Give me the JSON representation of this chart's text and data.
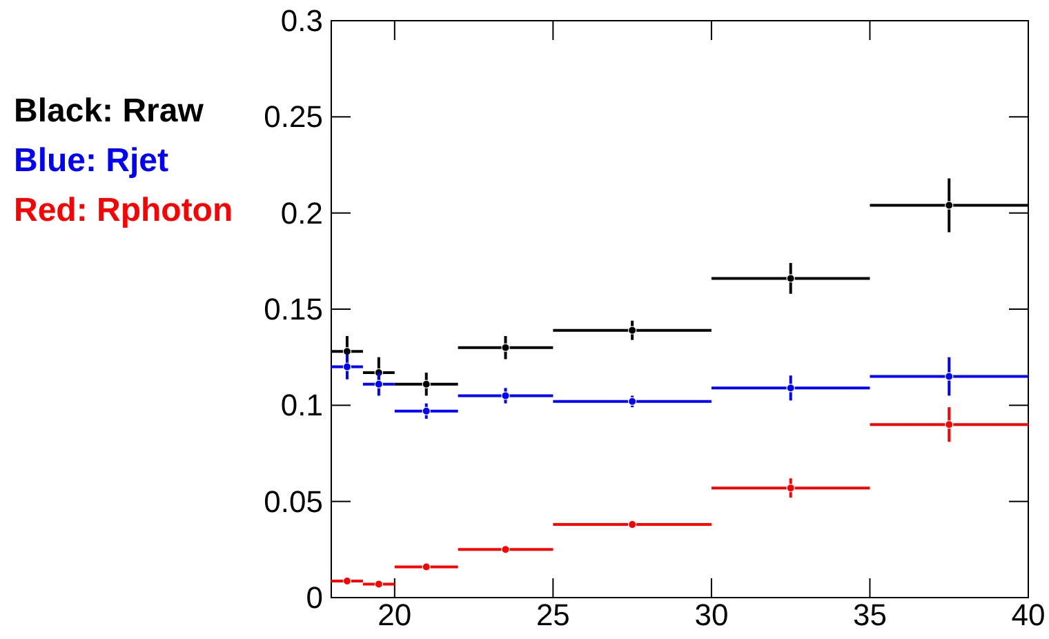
{
  "chart_data": {
    "type": "scatter",
    "xlim": [
      18,
      40
    ],
    "xticks": [
      20,
      25,
      30,
      35,
      40
    ],
    "ylim": [
      0,
      0.3
    ],
    "yticks": [
      0,
      0.05,
      {
        "value": 0.1,
        "label": "0.1"
      },
      0.15,
      {
        "value": 0.2,
        "label": "0.2"
      },
      0.25,
      {
        "value": 0.3,
        "label": "0.3"
      }
    ],
    "grid": false,
    "legend": "left",
    "marker": "circle",
    "series": [
      {
        "name": "Black: Rraw",
        "color": "#000000",
        "x": [
          18.5,
          19.5,
          21,
          23.5,
          27.5,
          32.5,
          37.5
        ],
        "values": [
          0.128,
          0.117,
          0.111,
          0.13,
          0.139,
          0.166,
          0.204
        ],
        "errors": [
          0.008,
          0.008,
          0.006,
          0.006,
          0.005,
          0.008,
          0.014
        ],
        "xerrors": [
          0.5,
          0.5,
          1,
          1.5,
          2.5,
          2.5,
          2.5
        ]
      },
      {
        "name": "Blue: Rjet",
        "color": "#0000ff",
        "x": [
          18.5,
          19.5,
          21,
          23.5,
          27.5,
          32.5,
          37.5
        ],
        "values": [
          0.12,
          0.111,
          0.097,
          0.105,
          0.102,
          0.109,
          0.115
        ],
        "errors": [
          0.0065,
          0.006,
          0.004,
          0.004,
          0.003,
          0.0065,
          0.01
        ],
        "xerrors": [
          0.5,
          0.5,
          1,
          1.5,
          2.5,
          2.5,
          2.5
        ]
      },
      {
        "name": "Red: Rphoton",
        "color": "#ff0000",
        "x": [
          18.5,
          19.5,
          21,
          23.5,
          27.5,
          32.5,
          37.5
        ],
        "values": [
          0.0086,
          0.007,
          0.016,
          0.025,
          0.038,
          0.057,
          0.09
        ],
        "errors": [
          0.001,
          0.001,
          0.001,
          0.001,
          0.001,
          0.005,
          0.009
        ],
        "xerrors": [
          0.5,
          0.5,
          1,
          1.5,
          2.5,
          2.5,
          2.5
        ]
      }
    ]
  }
}
